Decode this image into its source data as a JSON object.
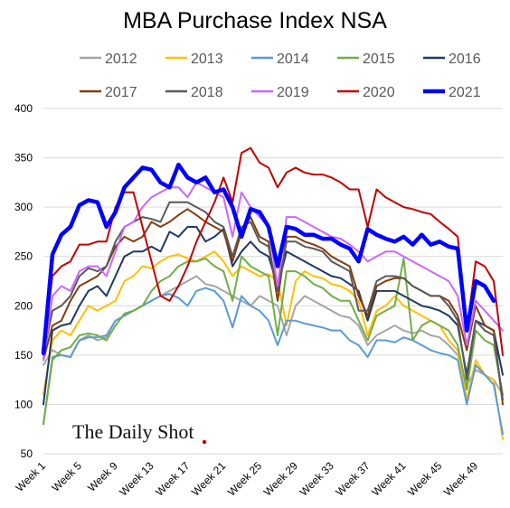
{
  "chart_data": {
    "type": "line",
    "title": "MBA Purchase Index NSA",
    "xlabel": "",
    "ylabel": "",
    "ylim": [
      50,
      400
    ],
    "yticks": [
      50,
      100,
      150,
      200,
      250,
      300,
      350,
      400
    ],
    "weeks": 52,
    "xtick_weeks": [
      1,
      5,
      9,
      13,
      17,
      21,
      25,
      29,
      33,
      37,
      41,
      45,
      49
    ],
    "xtick_labels": [
      "Week 1",
      "Week 5",
      "Week 9",
      "Week 13",
      "Week 17",
      "Week 21",
      "Week 25",
      "Week 29",
      "Week 33",
      "Week 37",
      "Week 41",
      "Week 45",
      "Week 49"
    ],
    "grid": "horizontal",
    "legend_position": "top",
    "watermark": "The Daily Shot",
    "series": [
      {
        "name": "2012",
        "color": "#a5a5a5",
        "values": [
          140,
          155,
          150,
          148,
          165,
          170,
          165,
          168,
          185,
          190,
          195,
          200,
          205,
          210,
          215,
          220,
          225,
          230,
          222,
          220,
          215,
          210,
          205,
          200,
          210,
          205,
          200,
          170,
          200,
          210,
          205,
          200,
          195,
          190,
          188,
          180,
          160,
          170,
          175,
          180,
          175,
          172,
          175,
          170,
          168,
          160,
          150,
          120,
          135,
          130,
          125,
          110
        ]
      },
      {
        "name": "2013",
        "color": "#ffc000",
        "values": [
          110,
          165,
          175,
          170,
          185,
          200,
          195,
          200,
          205,
          225,
          230,
          240,
          238,
          245,
          250,
          252,
          248,
          245,
          250,
          255,
          245,
          230,
          240,
          235,
          230,
          232,
          225,
          180,
          225,
          235,
          230,
          228,
          222,
          220,
          215,
          205,
          170,
          195,
          200,
          210,
          200,
          195,
          190,
          185,
          180,
          165,
          155,
          105,
          145,
          130,
          125,
          65
        ]
      },
      {
        "name": "2014",
        "color": "#5b9bd5",
        "values": [
          80,
          148,
          150,
          148,
          165,
          168,
          168,
          170,
          185,
          190,
          195,
          200,
          205,
          210,
          212,
          208,
          200,
          215,
          218,
          215,
          205,
          178,
          210,
          200,
          195,
          185,
          160,
          185,
          185,
          182,
          180,
          178,
          175,
          175,
          165,
          160,
          148,
          165,
          165,
          163,
          168,
          165,
          160,
          155,
          152,
          150,
          145,
          100,
          140,
          130,
          120,
          70
        ]
      },
      {
        "name": "2015",
        "color": "#70ad47",
        "values": [
          80,
          145,
          155,
          158,
          170,
          172,
          170,
          165,
          180,
          192,
          195,
          200,
          215,
          225,
          230,
          240,
          245,
          245,
          248,
          240,
          235,
          205,
          250,
          240,
          235,
          230,
          170,
          235,
          235,
          230,
          222,
          218,
          210,
          205,
          205,
          185,
          165,
          190,
          195,
          200,
          248,
          165,
          180,
          185,
          180,
          175,
          160,
          115,
          175,
          165,
          160,
          110
        ]
      },
      {
        "name": "2016",
        "color": "#203864",
        "values": [
          100,
          175,
          180,
          182,
          200,
          215,
          220,
          210,
          230,
          250,
          255,
          255,
          260,
          255,
          275,
          270,
          280,
          280,
          265,
          270,
          278,
          240,
          255,
          265,
          255,
          250,
          220,
          255,
          250,
          245,
          240,
          235,
          230,
          228,
          222,
          215,
          185,
          215,
          215,
          215,
          210,
          205,
          200,
          198,
          195,
          190,
          180,
          130,
          185,
          180,
          175,
          130
        ]
      },
      {
        "name": "2017",
        "color": "#843c0c",
        "values": [
          145,
          180,
          185,
          205,
          220,
          225,
          230,
          240,
          260,
          270,
          265,
          270,
          285,
          280,
          285,
          292,
          298,
          292,
          285,
          280,
          275,
          245,
          275,
          290,
          270,
          265,
          205,
          270,
          270,
          265,
          262,
          258,
          250,
          245,
          240,
          210,
          190,
          220,
          225,
          228,
          228,
          220,
          215,
          210,
          210,
          205,
          190,
          155,
          200,
          180,
          175,
          100
        ]
      },
      {
        "name": "2018",
        "color": "#595959",
        "values": [
          150,
          195,
          200,
          210,
          230,
          238,
          235,
          240,
          265,
          280,
          285,
          290,
          288,
          285,
          305,
          305,
          305,
          300,
          295,
          285,
          280,
          250,
          280,
          285,
          265,
          260,
          215,
          265,
          265,
          260,
          258,
          255,
          245,
          240,
          235,
          195,
          195,
          225,
          230,
          230,
          228,
          220,
          215,
          210,
          210,
          200,
          185,
          125,
          185,
          175,
          170,
          105
        ]
      },
      {
        "name": "2019",
        "color": "#cc66ff",
        "values": [
          145,
          210,
          220,
          215,
          235,
          240,
          240,
          230,
          255,
          280,
          285,
          300,
          310,
          315,
          320,
          320,
          310,
          325,
          320,
          315,
          310,
          270,
          315,
          300,
          290,
          280,
          220,
          290,
          290,
          285,
          280,
          275,
          270,
          268,
          262,
          255,
          245,
          250,
          255,
          255,
          250,
          245,
          240,
          235,
          230,
          225,
          210,
          160,
          205,
          195,
          185,
          175
        ]
      },
      {
        "name": "2020",
        "color": "#c00000",
        "values": [
          155,
          230,
          240,
          245,
          262,
          262,
          265,
          265,
          300,
          315,
          315,
          280,
          245,
          210,
          205,
          220,
          240,
          265,
          285,
          305,
          330,
          305,
          355,
          360,
          345,
          340,
          320,
          335,
          340,
          335,
          333,
          333,
          330,
          325,
          318,
          318,
          280,
          318,
          310,
          305,
          300,
          298,
          295,
          293,
          285,
          278,
          270,
          175,
          245,
          240,
          225,
          150
        ]
      },
      {
        "name": "2021",
        "color": "#0000ff",
        "values": [
          152,
          252,
          272,
          280,
          302,
          307,
          305,
          280,
          295,
          320,
          330,
          340,
          338,
          325,
          320,
          343,
          330,
          325,
          330,
          315,
          318,
          300,
          270,
          298,
          295,
          280,
          240,
          280,
          278,
          272,
          272,
          268,
          268,
          262,
          258,
          245,
          278,
          272,
          268,
          265,
          270,
          262,
          272,
          262,
          265,
          260,
          258,
          175,
          225,
          220,
          205,
          null
        ]
      }
    ]
  }
}
